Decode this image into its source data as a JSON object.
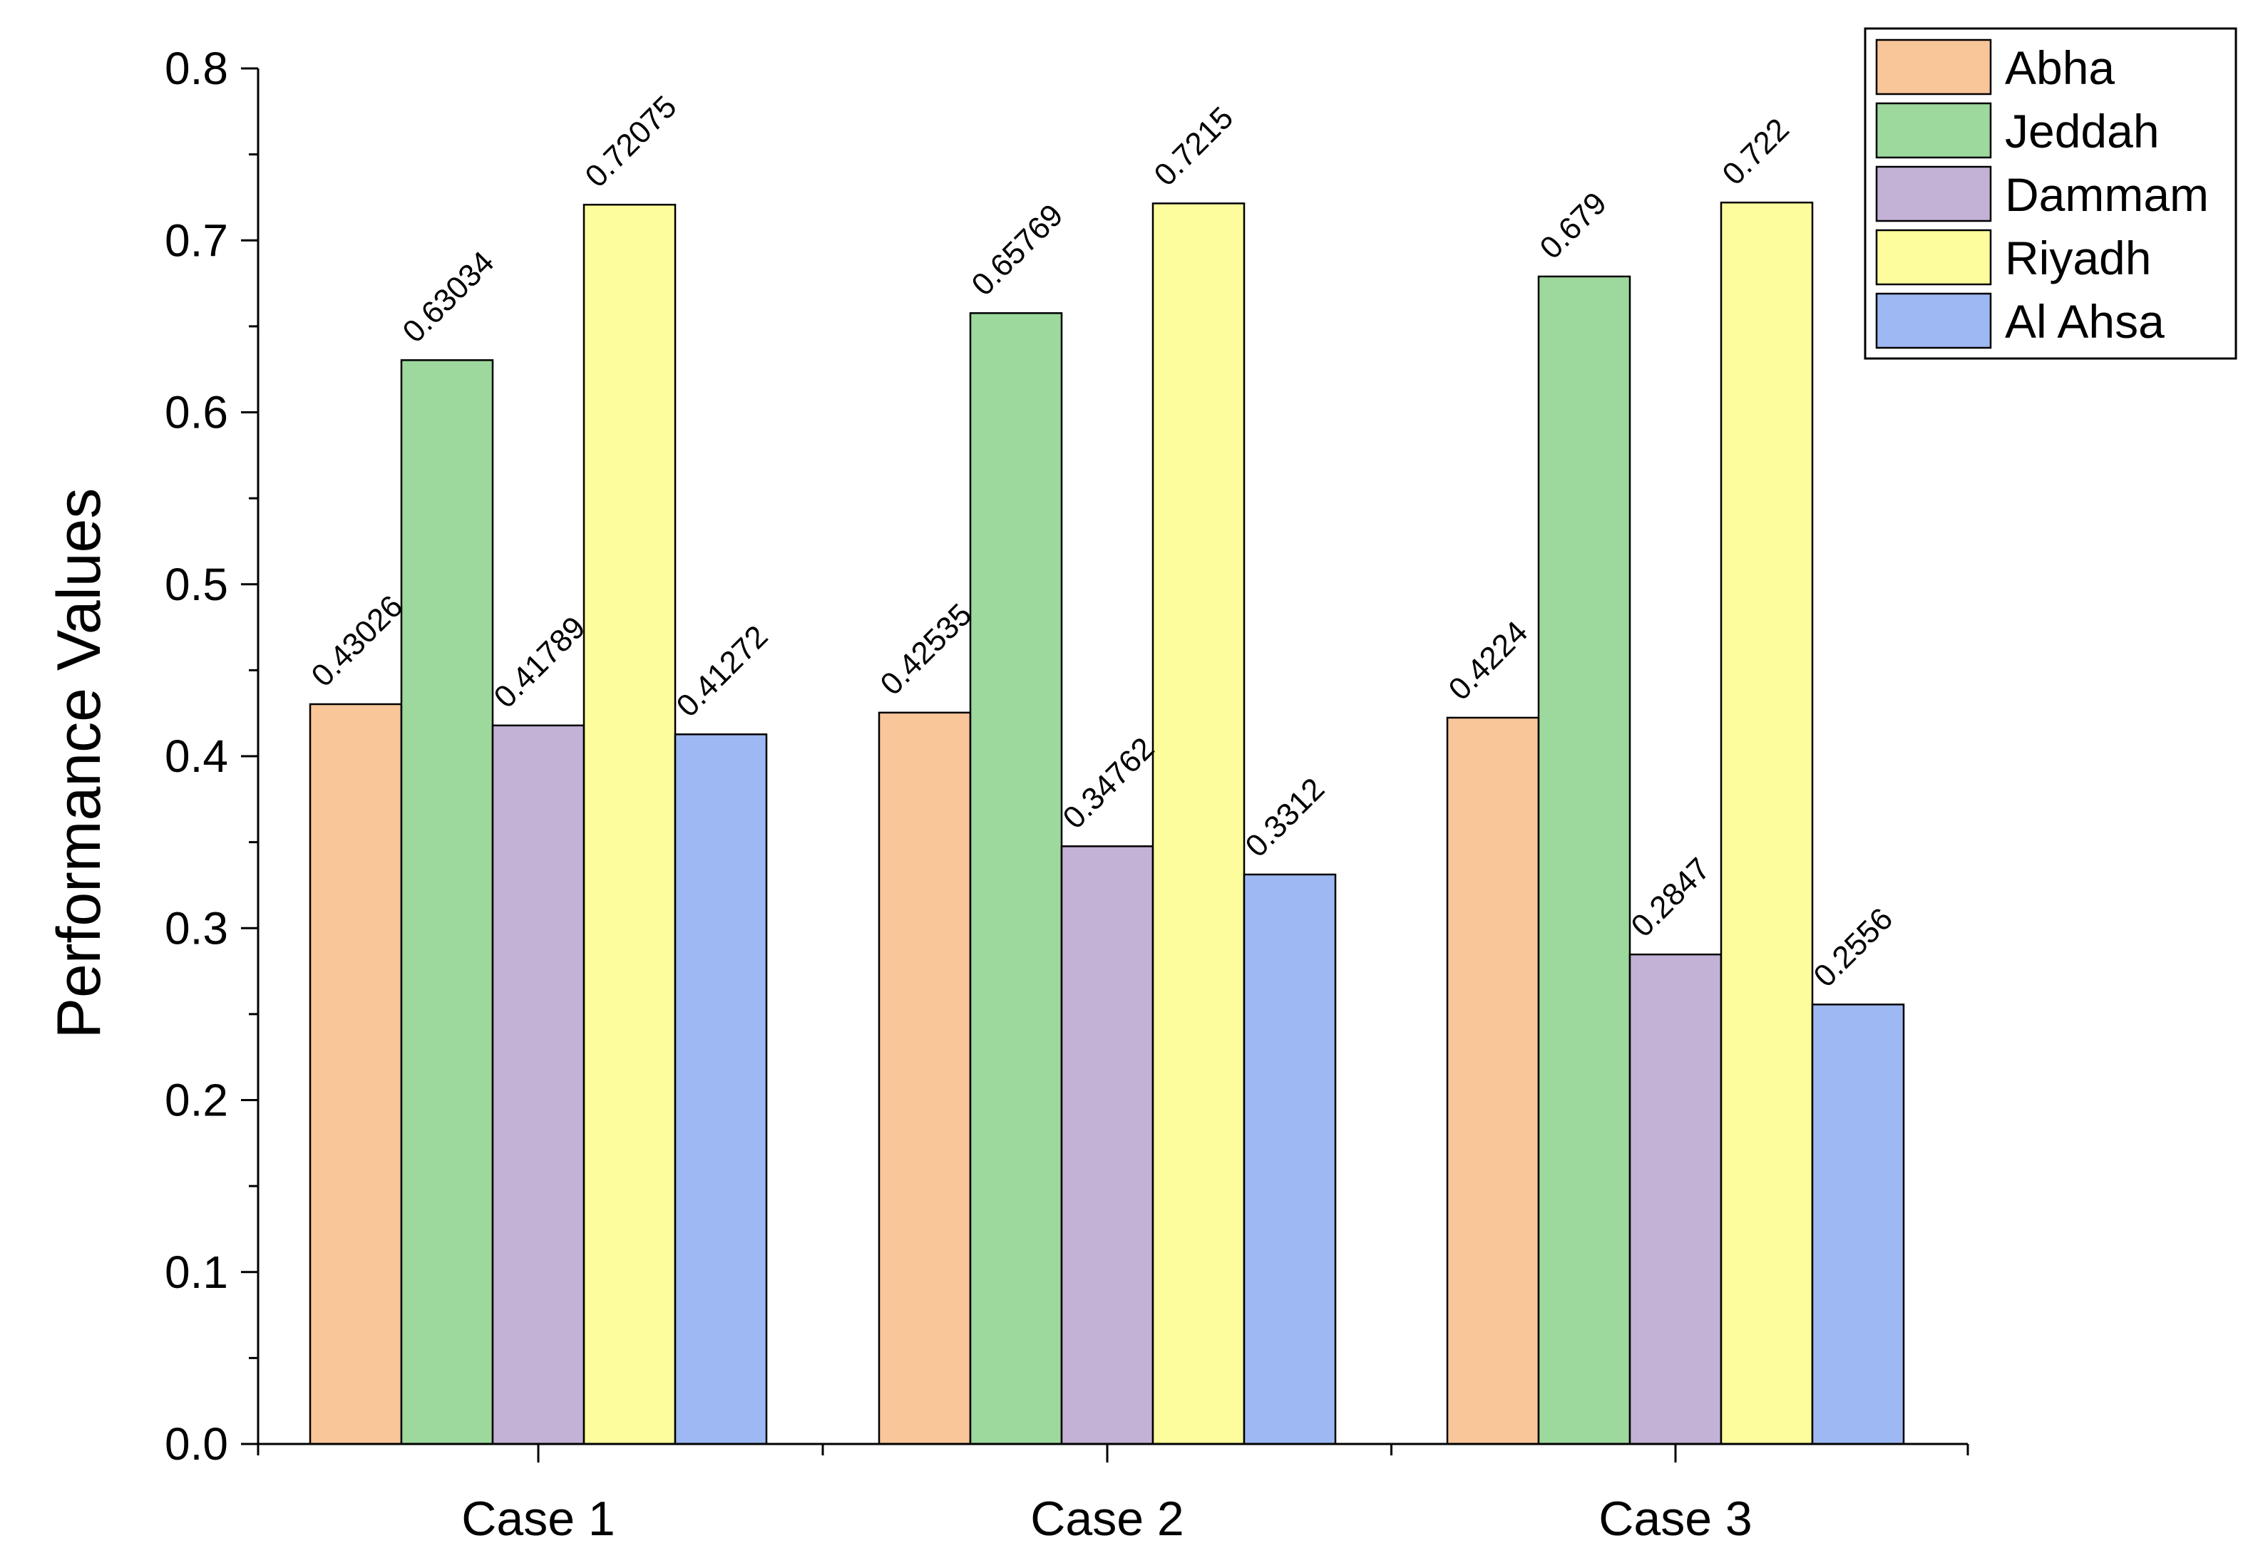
{
  "chart_data": {
    "type": "bar",
    "title": "",
    "xlabel": "",
    "ylabel": "Performance Values",
    "ylim": [
      0,
      0.8
    ],
    "yticks": [
      "0.0",
      "0.1",
      "0.2",
      "0.3",
      "0.4",
      "0.5",
      "0.6",
      "0.7",
      "0.8"
    ],
    "categories": [
      "Case 1",
      "Case 2",
      "Case 3"
    ],
    "grid": false,
    "legend_position": "top-right",
    "series": [
      {
        "name": "Abha",
        "color": "#F9C699",
        "values": [
          0.43026,
          0.42535,
          0.4224
        ],
        "labels": [
          "0.43026",
          "0.42535",
          "0.4224"
        ]
      },
      {
        "name": "Jeddah",
        "color": "#9DD89D",
        "values": [
          0.63034,
          0.65769,
          0.679
        ],
        "labels": [
          "0.63034",
          "0.65769",
          "0.679"
        ]
      },
      {
        "name": "Dammam",
        "color": "#C3B1D6",
        "values": [
          0.41789,
          0.34762,
          0.2847
        ],
        "labels": [
          "0.41789",
          "0.34762",
          "0.2847"
        ]
      },
      {
        "name": "Riyadh",
        "color": "#FDFD9D",
        "values": [
          0.72075,
          0.7215,
          0.722
        ],
        "labels": [
          "0.72075",
          "0.7215",
          "0.722"
        ]
      },
      {
        "name": "Al Ahsa",
        "color": "#9DB8F2",
        "values": [
          0.41272,
          0.3312,
          0.2556
        ],
        "labels": [
          "0.41272",
          "0.3312",
          "0.2556"
        ]
      }
    ]
  }
}
